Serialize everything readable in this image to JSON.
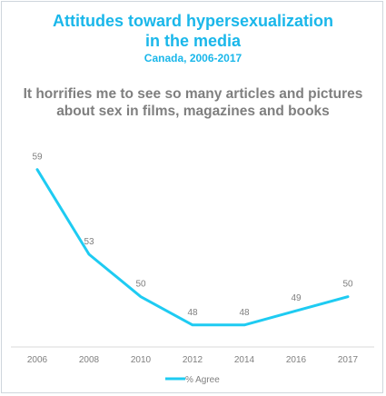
{
  "chart_data": {
    "type": "line",
    "title_lines": [
      "Attitudes toward hypersexualization",
      "in the media"
    ],
    "subtitle": "Canada, 2006-2017",
    "question_lines": [
      "It horrifies me to see so many articles and pictures",
      "about sex in films, magazines and books"
    ],
    "categories": [
      "2006",
      "2008",
      "2010",
      "2012",
      "2014",
      "2016",
      "2017"
    ],
    "series": [
      {
        "name": "% Agree",
        "values": [
          59,
          53,
          50,
          48,
          48,
          49,
          50
        ],
        "color": "#1ecbf2"
      }
    ],
    "ylim": [
      44,
      62
    ],
    "grid": false,
    "legend": "bottom",
    "colors": {
      "title": "#1ab7ea",
      "question": "#7f7f7f",
      "labels": "#7f7f7f",
      "axis": "#d9d9d9"
    }
  }
}
